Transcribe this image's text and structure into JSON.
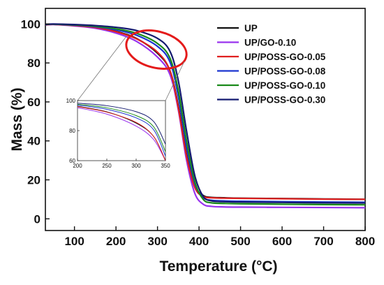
{
  "chart_data": {
    "type": "line",
    "title": "",
    "xlabel": "Temperature (°C)",
    "ylabel": "Mass (%)",
    "xlim": [
      30,
      800
    ],
    "ylim": [
      -6,
      108
    ],
    "xticks": [
      100,
      200,
      300,
      400,
      500,
      600,
      700,
      800
    ],
    "yticks": [
      0,
      20,
      40,
      60,
      80,
      100
    ],
    "grid": false,
    "legend_position": "top-right",
    "series": [
      {
        "name": "UP",
        "color": "#111111",
        "x": [
          30,
          50,
          100,
          150,
          200,
          250,
          300,
          330,
          350,
          370,
          390,
          410,
          430,
          460,
          500,
          600,
          700,
          800
        ],
        "y": [
          99.6,
          99.8,
          99.2,
          98.2,
          96.2,
          92.5,
          85,
          76,
          58,
          33,
          17,
          12,
          11,
          10.8,
          10.6,
          10.4,
          10.2,
          10
        ]
      },
      {
        "name": "UP/GO-0.10",
        "color": "#9933ee",
        "x": [
          30,
          50,
          100,
          150,
          200,
          250,
          300,
          330,
          350,
          370,
          390,
          410,
          430,
          460,
          500,
          600,
          700,
          800
        ],
        "y": [
          99.5,
          99.7,
          99,
          97.8,
          95.3,
          91,
          83,
          74,
          56,
          30,
          13,
          7.5,
          6.4,
          6.1,
          6,
          5.9,
          5.8,
          5.7
        ]
      },
      {
        "name": "UP/POSS-GO-0.05",
        "color": "#e02020",
        "x": [
          30,
          50,
          100,
          150,
          200,
          250,
          300,
          330,
          350,
          370,
          390,
          410,
          430,
          460,
          500,
          600,
          700,
          800
        ],
        "y": [
          99.5,
          99.8,
          99.2,
          98.2,
          96,
          92.3,
          85.5,
          76,
          57,
          32,
          16,
          11.5,
          10.8,
          10.6,
          10.5,
          10.3,
          10.1,
          10
        ]
      },
      {
        "name": "UP/POSS-GO-0.08",
        "color": "#1a35d0",
        "x": [
          30,
          50,
          100,
          150,
          200,
          250,
          300,
          330,
          350,
          370,
          390,
          410,
          430,
          460,
          500,
          600,
          700,
          800
        ],
        "y": [
          99.6,
          99.9,
          99.4,
          98.6,
          97,
          94.2,
          88.5,
          80.5,
          63,
          37,
          18,
          11,
          9.5,
          9.2,
          9,
          8.8,
          8.6,
          8.5
        ]
      },
      {
        "name": "UP/POSS-GO-0.10",
        "color": "#1a8a1a",
        "x": [
          30,
          50,
          100,
          150,
          200,
          250,
          300,
          330,
          350,
          370,
          390,
          410,
          430,
          460,
          500,
          600,
          700,
          800
        ],
        "y": [
          99.7,
          99.9,
          99.5,
          98.8,
          97.5,
          95.2,
          90,
          82.5,
          66,
          40,
          19,
          10,
          8.2,
          7.9,
          7.7,
          7.5,
          7.3,
          7.2
        ]
      },
      {
        "name": "UP/POSS-GO-0.30",
        "color": "#141a70",
        "x": [
          30,
          50,
          100,
          150,
          200,
          250,
          300,
          330,
          350,
          370,
          390,
          410,
          430,
          460,
          500,
          600,
          700,
          800
        ],
        "y": [
          99.8,
          100,
          99.7,
          99.2,
          98.3,
          96.6,
          92.6,
          86,
          71,
          45,
          22,
          11.5,
          9.2,
          8.8,
          8.6,
          8.4,
          8.2,
          8.1
        ]
      }
    ],
    "inset": {
      "xlim": [
        200,
        350
      ],
      "ylim": [
        60,
        100
      ],
      "xticks": [
        200,
        250,
        300,
        350
      ],
      "yticks": [
        60,
        80,
        100
      ]
    },
    "annotation": {
      "shape": "ellipse",
      "color": "#e41a1a"
    }
  }
}
